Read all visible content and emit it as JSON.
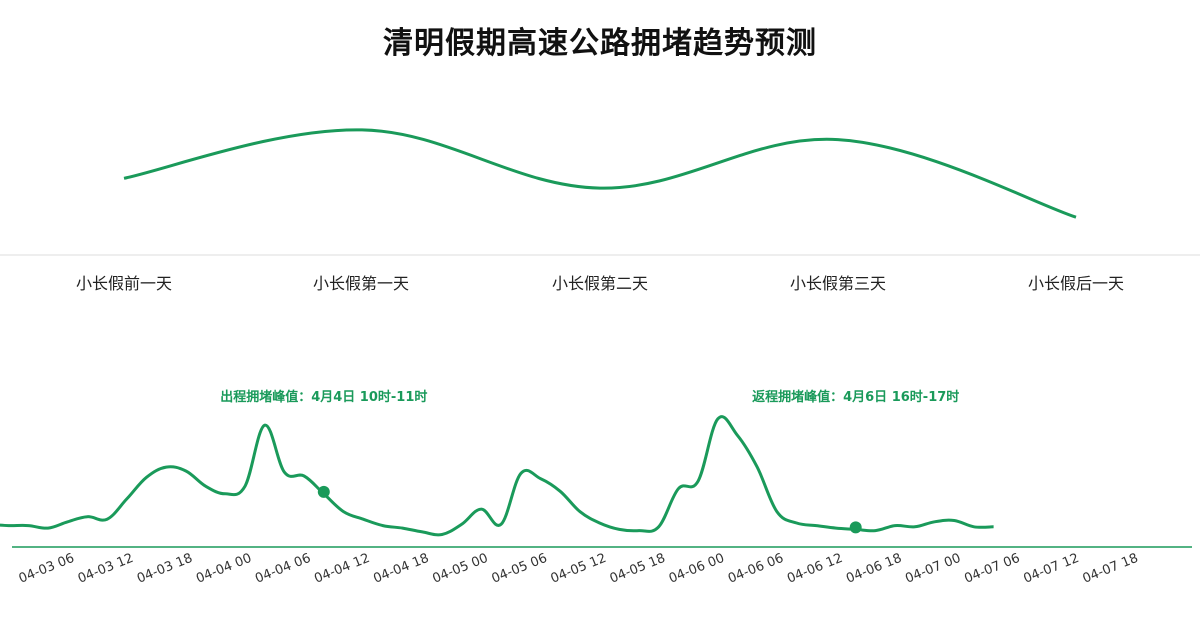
{
  "title": "清明假期高速公路拥堵趋势预测",
  "colors": {
    "accent": "#1a9a5a",
    "divider": "#dddddd"
  },
  "chart_data": [
    {
      "type": "line",
      "title": "",
      "categories": [
        "小长假前一天",
        "小长假第一天",
        "小长假第二天",
        "小长假第三天",
        "小长假后一天"
      ],
      "values": [
        0.45,
        0.95,
        0.35,
        0.85,
        0.05
      ],
      "ylim": [
        0,
        1
      ],
      "smooth": true,
      "axes_visible": false
    },
    {
      "type": "line",
      "x_ticks": [
        "04-03 06",
        "04-03 12",
        "04-03 18",
        "04-04 00",
        "04-04 06",
        "04-04 12",
        "04-04 18",
        "04-05 00",
        "04-05 06",
        "04-05 12",
        "04-05 18",
        "04-06 00",
        "04-06 06",
        "04-06 12",
        "04-06 18",
        "04-07 00",
        "04-07 06",
        "04-07 12",
        "04-07 18"
      ],
      "x_start": "04-03 00",
      "x_step_hours": 2,
      "values": [
        0.1,
        0.09,
        0.09,
        0.07,
        0.12,
        0.16,
        0.14,
        0.3,
        0.47,
        0.55,
        0.52,
        0.4,
        0.34,
        0.4,
        0.88,
        0.51,
        0.48,
        0.34,
        0.2,
        0.14,
        0.09,
        0.07,
        0.04,
        0.02,
        0.1,
        0.22,
        0.1,
        0.5,
        0.46,
        0.36,
        0.2,
        0.11,
        0.06,
        0.05,
        0.08,
        0.38,
        0.44,
        0.93,
        0.8,
        0.55,
        0.2,
        0.11,
        0.09,
        0.07,
        0.06,
        0.05,
        0.09,
        0.08,
        0.12,
        0.13,
        0.08,
        0.08
      ],
      "ylim": [
        0,
        1
      ],
      "smooth": true,
      "annotations": [
        {
          "label": "出程拥堵峰值：4月4日 10时-11时",
          "x": "04-04 10"
        },
        {
          "label": "返程拥堵峰值：4月6日 16时-17时",
          "x": "04-06 16"
        }
      ]
    }
  ]
}
